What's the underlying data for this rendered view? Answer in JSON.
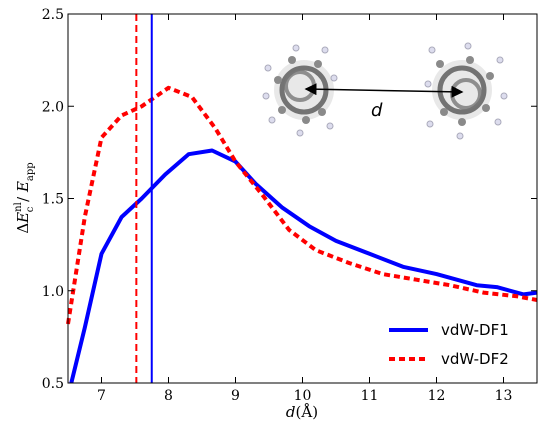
{
  "chart_data": {
    "type": "line",
    "xlabel_var": "d",
    "xlabel_unit": "(Å)",
    "ylabel_delta": "Δ",
    "ylabel_E": "E",
    "ylabel_sub_c": "c",
    "ylabel_sup_nl": "nl",
    "ylabel_slash": " / ",
    "ylabel_sub_app": "app",
    "xlim": [
      6.5,
      13.5
    ],
    "ylim": [
      0.5,
      2.5
    ],
    "xticks": [
      7,
      8,
      9,
      10,
      11,
      12,
      13
    ],
    "yticks": [
      0.5,
      1.0,
      1.5,
      2.0,
      2.5
    ],
    "ytick_labels": [
      "0.5",
      "1.0",
      "1.5",
      "2.0",
      "2.5"
    ],
    "grid": false,
    "legend_position": "bottom-right",
    "series": [
      {
        "name": "vdW-DF1",
        "color": "#0000ff",
        "style": "solid",
        "x": [
          6.55,
          6.75,
          7.0,
          7.3,
          7.6,
          7.95,
          8.3,
          8.65,
          9.0,
          9.3,
          9.7,
          10.1,
          10.5,
          11.0,
          11.5,
          12.0,
          12.6,
          12.9,
          13.3,
          13.5
        ],
        "y": [
          0.5,
          0.8,
          1.2,
          1.4,
          1.5,
          1.63,
          1.74,
          1.76,
          1.7,
          1.58,
          1.45,
          1.35,
          1.27,
          1.2,
          1.13,
          1.09,
          1.03,
          1.02,
          0.98,
          0.99
        ]
      },
      {
        "name": "vdW-DF2",
        "color": "#ff0000",
        "style": "dashed",
        "x": [
          6.5,
          6.75,
          7.0,
          7.3,
          7.6,
          8.0,
          8.35,
          8.7,
          9.0,
          9.4,
          9.8,
          10.2,
          10.7,
          11.2,
          11.7,
          12.2,
          12.7,
          13.2,
          13.5
        ],
        "y": [
          0.82,
          1.4,
          1.83,
          1.95,
          2.0,
          2.1,
          2.05,
          1.88,
          1.7,
          1.52,
          1.33,
          1.22,
          1.15,
          1.09,
          1.06,
          1.03,
          0.99,
          0.97,
          0.95
        ]
      }
    ],
    "vlines": [
      {
        "x": 7.75,
        "color": "#0000ff",
        "style": "solid"
      },
      {
        "x": 7.52,
        "color": "#ff0000",
        "style": "dashed"
      }
    ],
    "annotation_label": "d"
  }
}
